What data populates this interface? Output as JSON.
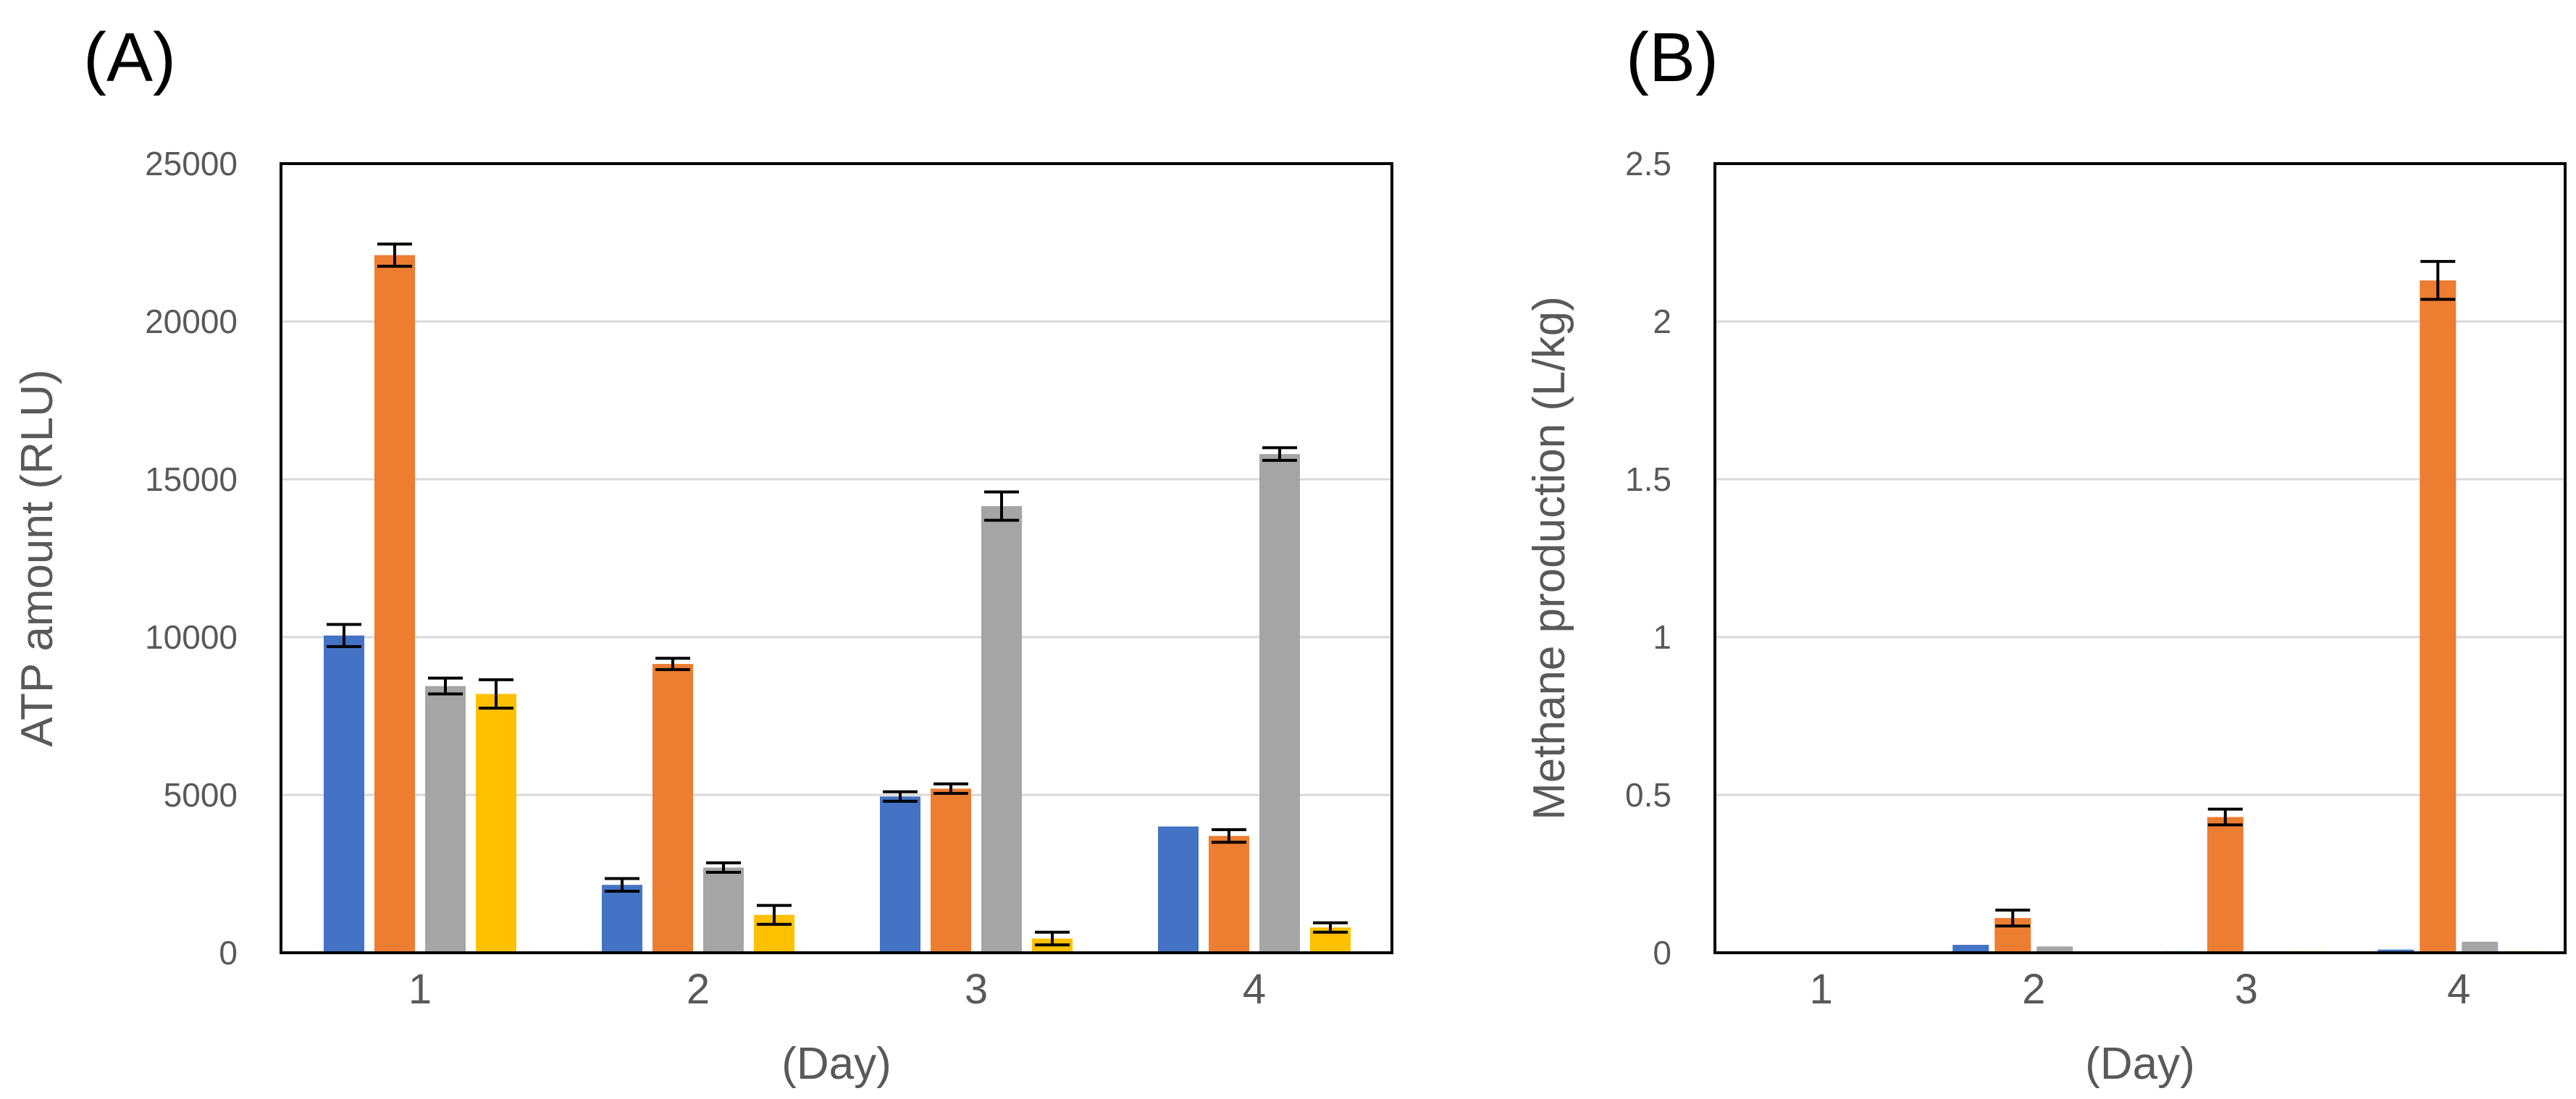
{
  "chart_data": [
    {
      "type": "bar",
      "panel_label": "(A)",
      "categories": [
        "1",
        "2",
        "3",
        "4"
      ],
      "xlabel": "(Day)",
      "ylabel": "ATP amount (RLU)",
      "ylim": [
        0,
        25000
      ],
      "yticks": [
        "0",
        "5000",
        "10000",
        "15000",
        "20000",
        "25000"
      ],
      "grid": true,
      "legend": "none",
      "series": [
        {
          "color": "#4472c4",
          "values": [
            10050,
            2150,
            4950,
            4000
          ],
          "errors": [
            350,
            200,
            150,
            0
          ]
        },
        {
          "color": "#ed7d31",
          "values": [
            22100,
            9150,
            5200,
            3700
          ],
          "errors": [
            350,
            180,
            150,
            200
          ]
        },
        {
          "color": "#a5a5a5",
          "values": [
            8450,
            2700,
            14150,
            15800
          ],
          "errors": [
            250,
            150,
            450,
            200
          ]
        },
        {
          "color": "#ffc000",
          "values": [
            8200,
            1200,
            450,
            800
          ],
          "errors": [
            450,
            300,
            200,
            150
          ]
        }
      ]
    },
    {
      "type": "bar",
      "panel_label": "(B)",
      "categories": [
        "1",
        "2",
        "3",
        "4"
      ],
      "xlabel": "(Day)",
      "ylabel": "Methane production (L/kg)",
      "ylim": [
        0,
        2.5
      ],
      "yticks": [
        "0",
        "0.5",
        "1",
        "1.5",
        "2",
        "2.5"
      ],
      "grid": true,
      "legend": "none",
      "series": [
        {
          "color": "#4472c4",
          "values": [
            0,
            0.025,
            0.005,
            0.01
          ],
          "errors": [
            0,
            0,
            0,
            0
          ]
        },
        {
          "color": "#ed7d31",
          "values": [
            0,
            0.11,
            0.43,
            2.13
          ],
          "errors": [
            0,
            0.025,
            0.025,
            0.06
          ]
        },
        {
          "color": "#a5a5a5",
          "values": [
            0,
            0.02,
            0.005,
            0.035
          ],
          "errors": [
            0,
            0,
            0,
            0
          ]
        },
        {
          "color": "#ffc000",
          "values": [
            0,
            0,
            0.005,
            0.005
          ],
          "errors": [
            0,
            0,
            0,
            0
          ]
        }
      ]
    }
  ]
}
